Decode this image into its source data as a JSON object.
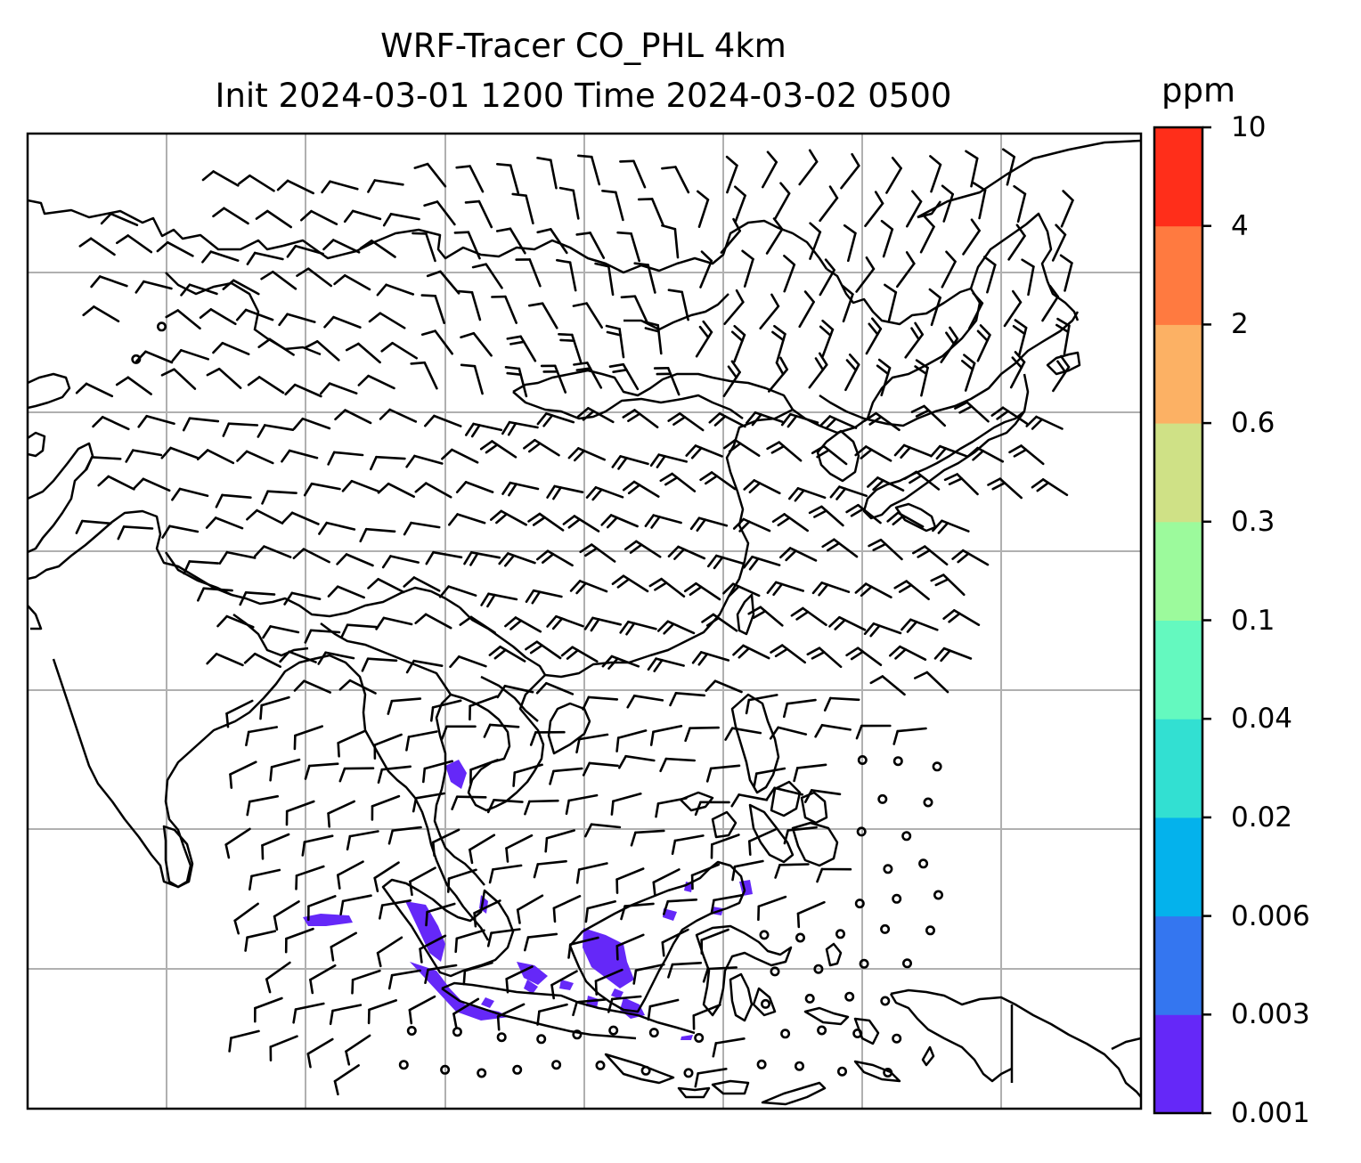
{
  "title": {
    "line1": "WRF-Tracer CO_PHL 4km",
    "line2": "Init 2024-03-01 1200 Time 2024-03-02 0500"
  },
  "colorbar": {
    "unit": "ppm",
    "levels": [
      "0.001",
      "0.003",
      "0.006",
      "0.02",
      "0.04",
      "0.1",
      "0.3",
      "0.6",
      "2",
      "4",
      "10"
    ],
    "colors": [
      "#6528f8",
      "#3476f0",
      "#04b2ec",
      "#32e0d2",
      "#64f9bf",
      "#9cfa9c",
      "#cfe186",
      "#fcb164",
      "#ff7a40",
      "#ff2e1a"
    ]
  },
  "map": {
    "gridlines": true,
    "coastline_color": "#000000",
    "tracer_color": "#6528f8"
  }
}
